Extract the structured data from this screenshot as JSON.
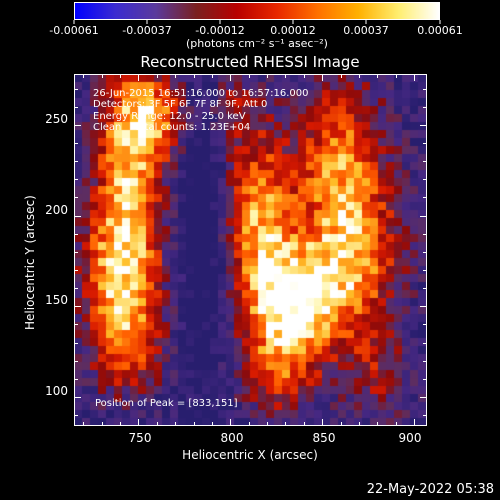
{
  "colorbar": {
    "tick_labels": [
      "-0.00061",
      "-0.00037",
      "-0.00012",
      "0.00012",
      "0.00037",
      "0.00061"
    ],
    "unit_label": "(photons cm⁻² s⁻¹ asec⁻²)",
    "colors": [
      "#0000ff",
      "#3b2bd0",
      "#5a3a9c",
      "#7a2020",
      "#b80000",
      "#e82800",
      "#ff7000",
      "#ffb000",
      "#ffee70",
      "#ffffff"
    ]
  },
  "chart_data": {
    "type": "heatmap",
    "title": "Reconstructed RHESSI Image",
    "xlabel": "Heliocentric X (arcsec)",
    "ylabel": "Heliocentric Y (arcsec)",
    "xlim": [
      715,
      907
    ],
    "ylim": [
      84,
      278
    ],
    "x_ticks": [
      750,
      800,
      850,
      900
    ],
    "y_ticks": [
      100,
      150,
      200,
      250
    ],
    "peak_position": [
      833,
      151
    ]
  },
  "info": {
    "time_range": "26-Jun-2015 16:51:16.000 to 16:57:16.000",
    "detectors": "Detectors: 3F 5F 6F 7F 8F 9F, Att 0",
    "energy_range": "Energy Range: 12.0 - 25.0 keV",
    "clean_counts": "Clean    Total counts: 1.23E+04",
    "peak": "Position of Peak = [833,151]"
  },
  "timestamp": "22-May-2022 05:38"
}
